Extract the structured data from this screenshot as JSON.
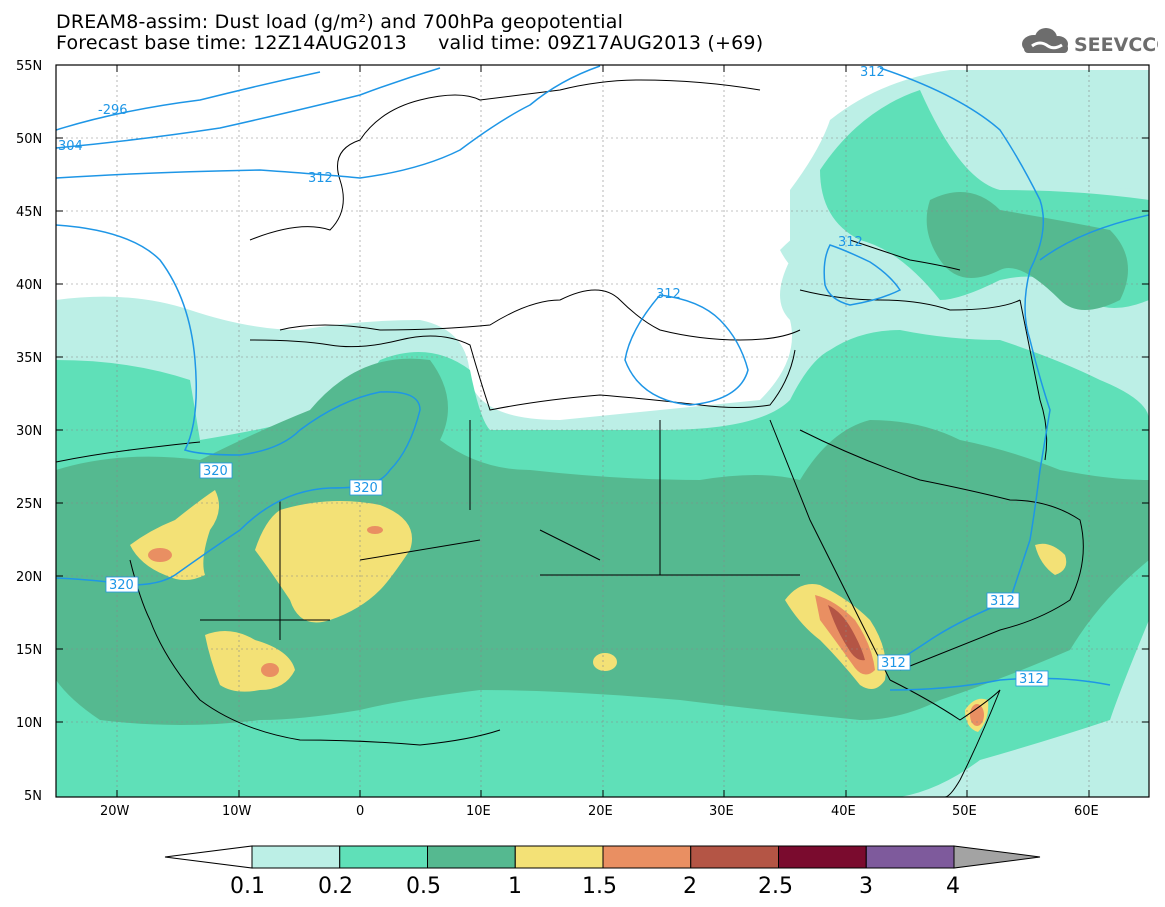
{
  "header": {
    "title_line1": "DREAM8-assim: Dust load (g/m²) and 700hPa geopotential",
    "title_line2": "Forecast base time: 12Z14AUG2013     valid time: 09Z17AUG2013 (+69)",
    "logo_text": "SEEVCCC"
  },
  "map": {
    "lat_labels": [
      "55N",
      "50N",
      "45N",
      "40N",
      "35N",
      "30N",
      "25N",
      "20N",
      "15N",
      "10N",
      "5N"
    ],
    "lon_labels": [
      "20W",
      "10W",
      "0",
      "10E",
      "20E",
      "30E",
      "40E",
      "50E",
      "60E"
    ],
    "contour_labels": [
      "-296",
      "304",
      "312",
      "312",
      "312",
      "320",
      "320",
      "320",
      "312",
      "312",
      "312",
      "312"
    ],
    "dust_colors": {
      "c01": "#bcefe6",
      "c02": "#5fe0b8",
      "c05": "#55b990",
      "c1": "#f3e176",
      "c15": "#e98f62",
      "c2": "#b45545",
      "c25": "#7a0b2e",
      "c3": "#7e5a9c",
      "c4": "#a3a3a3"
    },
    "contour_color": "#1e96e6"
  },
  "colorbar": {
    "labels": [
      "0.1",
      "0.2",
      "0.5",
      "1",
      "1.5",
      "2",
      "2.5",
      "3",
      "4"
    ],
    "colors": [
      "#bcefe6",
      "#5fe0b8",
      "#55b990",
      "#f3e176",
      "#e98f62",
      "#b45545",
      "#7a0b2e",
      "#7e5a9c"
    ],
    "over_color": "#a3a3a3",
    "under_color": "#ffffff"
  }
}
